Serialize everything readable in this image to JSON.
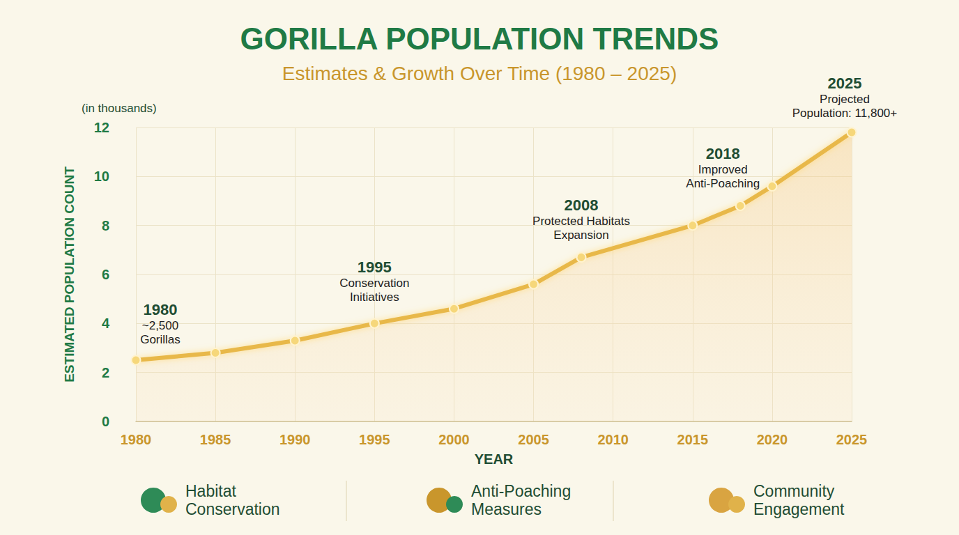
{
  "chart_data": {
    "type": "line",
    "title": "GORILLA POPULATION TRENDS",
    "subtitle": "Estimates & Growth Over Time (1980 – 2025)",
    "y_unit": "(in thousands)",
    "ylabel": "ESTIMATED POPULATION COUNT",
    "xlabel": "YEAR",
    "x": [
      1980,
      1985,
      1990,
      1995,
      2000,
      2005,
      2008,
      2015,
      2018,
      2020,
      2025
    ],
    "values": [
      2.5,
      2.8,
      3.3,
      4.0,
      4.6,
      5.6,
      6.7,
      8.0,
      8.8,
      9.6,
      11.8
    ],
    "color": "#e8b84a",
    "marker": "circle",
    "xlim": [
      1980,
      2025
    ],
    "xticks": [
      1980,
      1985,
      1990,
      1995,
      2000,
      2005,
      2010,
      2015,
      2020,
      2025
    ],
    "ylim": [
      0,
      12
    ],
    "yticks": [
      0,
      2,
      4,
      6,
      8,
      10,
      12
    ],
    "grid": true,
    "annotations": [
      {
        "x": 1980,
        "title": "1980",
        "text": "~2,500 Gorillas"
      },
      {
        "x": 1995,
        "title": "1995",
        "text": "Conservation Initiatives"
      },
      {
        "x": 2008,
        "title": "2008",
        "text": "Protected Habitats Expansion"
      },
      {
        "x": 2018,
        "title": "2018",
        "text": "Improved Anti-Poaching"
      },
      {
        "x": 2025,
        "title": "2025",
        "text": "Projected Population: 11,800+"
      }
    ],
    "footer": [
      "Habitat Conservation",
      "Anti-Poaching Measures",
      "Community Engagement"
    ]
  }
}
